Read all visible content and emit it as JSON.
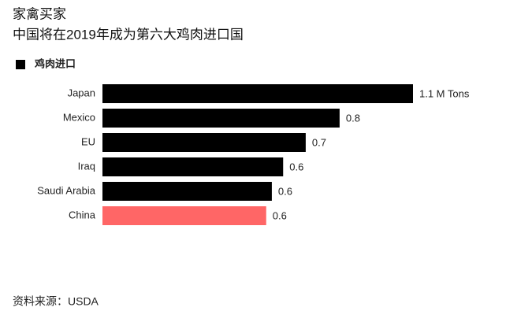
{
  "chart_data": {
    "type": "bar",
    "orientation": "horizontal",
    "title": "家禽买家",
    "subtitle": "中国将在2019年成为第六大鸡肉进口国",
    "categories": [
      "Japan",
      "Mexico",
      "EU",
      "Iraq",
      "Saudi Arabia",
      "China"
    ],
    "series": [
      {
        "name": "鸡肉进口",
        "color": "#000000",
        "values": [
          1.1,
          0.84,
          0.72,
          0.64,
          0.6,
          0.58
        ],
        "value_labels": [
          "1.1 M Tons",
          "0.8",
          "0.7",
          "0.6",
          "0.6",
          "0.6"
        ],
        "colors": [
          "#000000",
          "#000000",
          "#000000",
          "#000000",
          "#000000",
          "#ff6666"
        ]
      }
    ],
    "source": "资料来源：USDA"
  }
}
